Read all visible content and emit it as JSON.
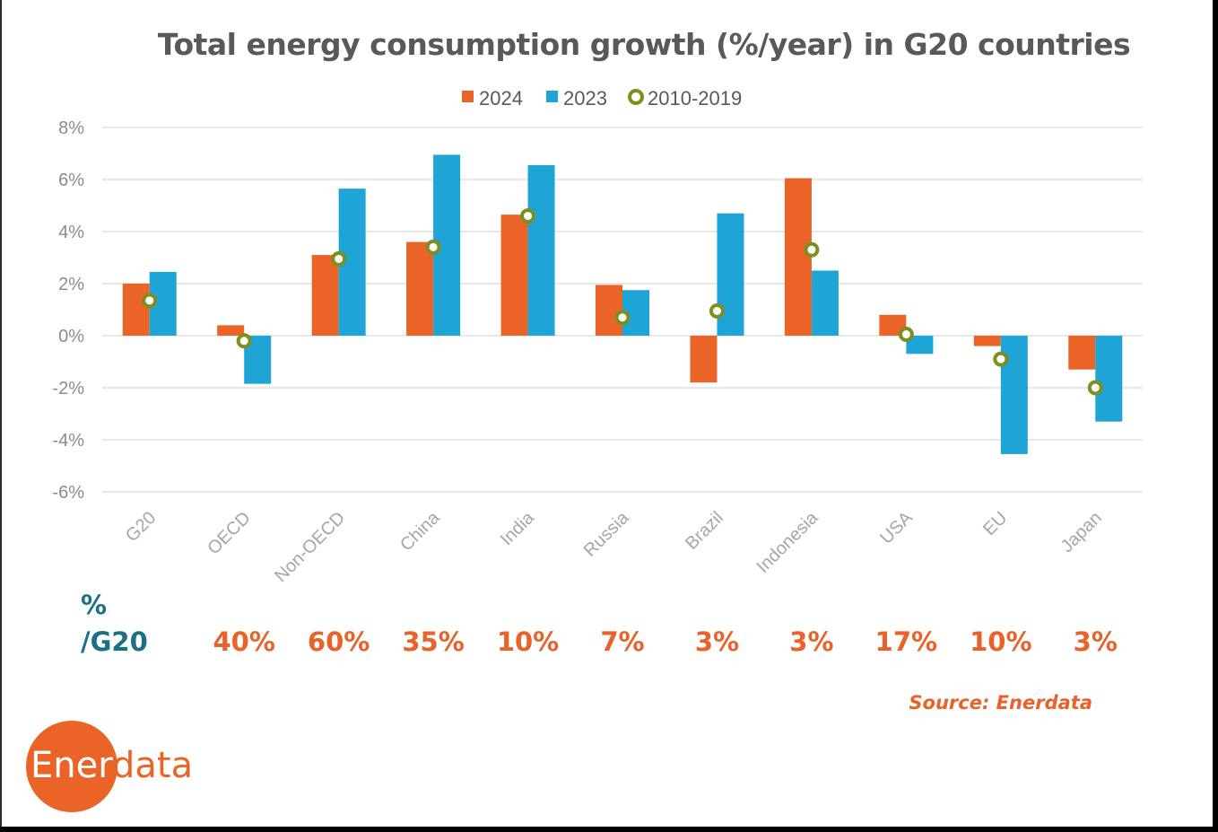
{
  "chart_data": {
    "type": "bar",
    "title": "Total energy consumption growth (%/year) in G20 countries",
    "categories": [
      "G20",
      "OECD",
      "Non-OECD",
      "China",
      "India",
      "Russia",
      "Brazil",
      "Indonesia",
      "USA",
      "EU",
      "Japan"
    ],
    "series": [
      {
        "name": "2024",
        "type": "bar",
        "color": "#ea6428",
        "values": [
          2.0,
          0.4,
          3.1,
          3.6,
          4.65,
          1.95,
          -1.8,
          6.05,
          0.8,
          -0.4,
          -1.3
        ]
      },
      {
        "name": "2023",
        "type": "bar",
        "color": "#1fa4d6",
        "values": [
          2.45,
          -1.85,
          5.65,
          6.95,
          6.55,
          1.75,
          4.7,
          2.5,
          -0.7,
          -4.55,
          -3.3
        ]
      },
      {
        "name": "2010-2019",
        "type": "marker",
        "color": "#7e8f1f",
        "values": [
          1.35,
          -0.2,
          2.95,
          3.4,
          4.6,
          0.7,
          0.95,
          3.3,
          0.05,
          -0.9,
          -2.0
        ]
      }
    ],
    "yticks": [
      "8%",
      "6%",
      "4%",
      "2%",
      "0%",
      "-2%",
      "-4%",
      "-6%"
    ],
    "ylim": [
      -6,
      8
    ],
    "grid": true,
    "legend": "top-center"
  },
  "share": {
    "header_line1": "%",
    "header_line2": "/G20",
    "values": [
      "40%",
      "60%",
      "35%",
      "10%",
      "7%",
      "3%",
      "3%",
      "17%",
      "10%",
      "3%"
    ]
  },
  "source": "Source: Enerdata",
  "logo": {
    "part1": "Ener",
    "part2": "data",
    "circle_color": "#ea6428",
    "text_color1": "#ffffff",
    "text_color2": "#ea6428"
  }
}
